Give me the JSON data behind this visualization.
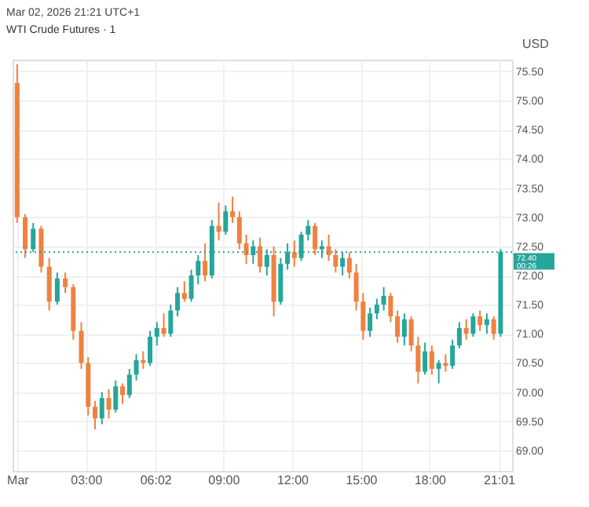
{
  "chart_data": {
    "type": "candlestick",
    "title": "WTI Crude Futures · 1",
    "subtitle": "Mar 02, 2026 21:21 UTC+1",
    "ylabel": "USD",
    "x": [
      0,
      0.35,
      0.7,
      1.05,
      1.4,
      1.75,
      2.1,
      2.45,
      2.8,
      3.1,
      3.4,
      3.7,
      4.0,
      4.3,
      4.6,
      4.9,
      5.2,
      5.5,
      5.8,
      6.1,
      6.4,
      6.7,
      7.0,
      7.3,
      7.6,
      7.9,
      8.2,
      8.5,
      8.8,
      9.1,
      9.4,
      9.7,
      10.0,
      10.3,
      10.6,
      10.9,
      11.2,
      11.5,
      11.8,
      12.1,
      12.4,
      12.7,
      13.0,
      13.3,
      13.6,
      13.9,
      14.2,
      14.5,
      14.8,
      15.1,
      15.4,
      15.7,
      16.0,
      16.3,
      16.6,
      16.9,
      17.2,
      17.5,
      17.8,
      18.1,
      18.4,
      18.7,
      19.0,
      19.3,
      19.6,
      19.9,
      20.2,
      20.5,
      20.8,
      21.1
    ],
    "ohlc": [
      [
        75.3,
        75.62,
        72.9,
        73.0
      ],
      [
        73.0,
        73.05,
        72.3,
        72.45
      ],
      [
        72.45,
        72.9,
        72.4,
        72.8
      ],
      [
        72.8,
        72.85,
        72.05,
        72.15
      ],
      [
        72.15,
        72.3,
        71.4,
        71.55
      ],
      [
        71.55,
        72.05,
        71.5,
        71.95
      ],
      [
        71.95,
        72.05,
        71.7,
        71.8
      ],
      [
        71.8,
        71.85,
        70.9,
        71.05
      ],
      [
        71.05,
        71.2,
        70.4,
        70.5
      ],
      [
        70.5,
        70.6,
        69.6,
        69.75
      ],
      [
        69.75,
        69.85,
        69.36,
        69.55
      ],
      [
        69.55,
        70.0,
        69.45,
        69.9
      ],
      [
        69.9,
        70.05,
        69.55,
        69.7
      ],
      [
        69.7,
        70.2,
        69.65,
        70.1
      ],
      [
        70.1,
        70.15,
        69.8,
        69.95
      ],
      [
        69.95,
        70.4,
        69.9,
        70.3
      ],
      [
        70.3,
        70.65,
        70.2,
        70.55
      ],
      [
        70.55,
        70.7,
        70.4,
        70.5
      ],
      [
        70.5,
        71.05,
        70.45,
        70.95
      ],
      [
        70.95,
        71.2,
        70.8,
        71.1
      ],
      [
        71.1,
        71.35,
        70.95,
        71.0
      ],
      [
        71.0,
        71.5,
        70.95,
        71.4
      ],
      [
        71.4,
        71.8,
        71.3,
        71.7
      ],
      [
        71.7,
        71.9,
        71.55,
        71.6
      ],
      [
        71.6,
        72.1,
        71.55,
        72.0
      ],
      [
        72.0,
        72.35,
        71.85,
        72.25
      ],
      [
        72.25,
        72.55,
        71.9,
        72.0
      ],
      [
        72.0,
        72.95,
        71.95,
        72.85
      ],
      [
        72.85,
        73.25,
        72.6,
        72.75
      ],
      [
        72.75,
        73.2,
        72.7,
        73.1
      ],
      [
        73.1,
        73.35,
        72.9,
        73.0
      ],
      [
        73.0,
        73.1,
        72.45,
        72.55
      ],
      [
        72.55,
        72.7,
        72.2,
        72.35
      ],
      [
        72.35,
        72.6,
        72.2,
        72.5
      ],
      [
        72.5,
        72.65,
        72.05,
        72.15
      ],
      [
        72.15,
        72.45,
        72.0,
        72.35
      ],
      [
        72.35,
        72.5,
        71.3,
        71.55
      ],
      [
        71.55,
        72.3,
        71.5,
        72.2
      ],
      [
        72.2,
        72.55,
        72.1,
        72.4
      ],
      [
        72.4,
        72.6,
        72.15,
        72.3
      ],
      [
        72.3,
        72.75,
        72.25,
        72.7
      ],
      [
        72.7,
        72.95,
        72.6,
        72.85
      ],
      [
        72.85,
        72.9,
        72.35,
        72.45
      ],
      [
        72.45,
        72.6,
        72.3,
        72.5
      ],
      [
        72.5,
        72.7,
        72.25,
        72.35
      ],
      [
        72.35,
        72.45,
        72.05,
        72.15
      ],
      [
        72.15,
        72.4,
        72.0,
        72.3
      ],
      [
        72.3,
        72.4,
        71.95,
        72.05
      ],
      [
        72.05,
        72.2,
        71.4,
        71.55
      ],
      [
        71.55,
        71.7,
        70.9,
        71.05
      ],
      [
        71.05,
        71.45,
        70.95,
        71.35
      ],
      [
        71.35,
        71.6,
        71.25,
        71.5
      ],
      [
        71.5,
        71.8,
        71.4,
        71.65
      ],
      [
        71.65,
        71.7,
        71.2,
        71.3
      ],
      [
        71.3,
        71.4,
        70.85,
        70.95
      ],
      [
        70.95,
        71.35,
        70.8,
        71.25
      ],
      [
        71.25,
        71.3,
        70.7,
        70.8
      ],
      [
        70.8,
        70.95,
        70.15,
        70.35
      ],
      [
        70.35,
        70.85,
        70.3,
        70.7
      ],
      [
        70.7,
        70.8,
        70.3,
        70.4
      ],
      [
        70.4,
        70.55,
        70.15,
        70.5
      ],
      [
        70.5,
        70.65,
        70.35,
        70.45
      ],
      [
        70.45,
        70.9,
        70.4,
        70.8
      ],
      [
        70.8,
        71.2,
        70.75,
        71.1
      ],
      [
        71.1,
        71.25,
        70.9,
        71.0
      ],
      [
        71.0,
        71.35,
        70.95,
        71.3
      ],
      [
        71.3,
        71.4,
        71.05,
        71.15
      ],
      [
        71.15,
        71.35,
        71.0,
        71.25
      ],
      [
        71.25,
        71.3,
        70.9,
        71.0
      ],
      [
        71.0,
        72.45,
        70.95,
        72.4
      ]
    ],
    "colors": [
      "#f0813f",
      "#f0813f",
      "#26a69a",
      "#f0813f",
      "#f0813f",
      "#26a69a",
      "#f0813f",
      "#f0813f",
      "#f0813f",
      "#f0813f",
      "#f0813f",
      "#26a69a",
      "#f0813f",
      "#26a69a",
      "#f0813f",
      "#26a69a",
      "#26a69a",
      "#f0813f",
      "#26a69a",
      "#26a69a",
      "#f0813f",
      "#26a69a",
      "#26a69a",
      "#f0813f",
      "#26a69a",
      "#26a69a",
      "#f0813f",
      "#26a69a",
      "#f0813f",
      "#26a69a",
      "#f0813f",
      "#f0813f",
      "#f0813f",
      "#26a69a",
      "#f0813f",
      "#26a69a",
      "#f0813f",
      "#26a69a",
      "#26a69a",
      "#f0813f",
      "#26a69a",
      "#26a69a",
      "#f0813f",
      "#26a69a",
      "#f0813f",
      "#f0813f",
      "#26a69a",
      "#f0813f",
      "#f0813f",
      "#f0813f",
      "#26a69a",
      "#26a69a",
      "#26a69a",
      "#f0813f",
      "#f0813f",
      "#26a69a",
      "#f0813f",
      "#f0813f",
      "#26a69a",
      "#f0813f",
      "#26a69a",
      "#f0813f",
      "#26a69a",
      "#26a69a",
      "#f0813f",
      "#26a69a",
      "#f0813f",
      "#26a69a",
      "#f0813f",
      "#26a69a"
    ],
    "xlim": [
      -0.2,
      21.6
    ],
    "xticks": [
      {
        "value": 0,
        "label": "Mar"
      },
      {
        "value": 3,
        "label": "03:00"
      },
      {
        "value": 6.03,
        "label": "06:02"
      },
      {
        "value": 9,
        "label": "09:00"
      },
      {
        "value": 12,
        "label": "12:00"
      },
      {
        "value": 15,
        "label": "15:00"
      },
      {
        "value": 18,
        "label": "18:00"
      },
      {
        "value": 21.02,
        "label": "21:01"
      }
    ],
    "ylim": [
      68.65,
      75.7
    ],
    "yticks": [
      {
        "value": 69,
        "label": "69.00"
      },
      {
        "value": 69.5,
        "label": "69.50"
      },
      {
        "value": 70,
        "label": "70.00"
      },
      {
        "value": 70.5,
        "label": "70.50"
      },
      {
        "value": 71,
        "label": "71.00"
      },
      {
        "value": 71.5,
        "label": "71.50"
      },
      {
        "value": 72,
        "label": "72.00"
      },
      {
        "value": 72.5,
        "label": "72.50"
      },
      {
        "value": 73,
        "label": "73.00"
      },
      {
        "value": 73.5,
        "label": "73.50"
      },
      {
        "value": 74,
        "label": "74.00"
      },
      {
        "value": 74.5,
        "label": "74.50"
      },
      {
        "value": 75,
        "label": "75.00"
      },
      {
        "value": 75.5,
        "label": "75.50"
      }
    ],
    "ref_lines": [
      {
        "axis": "y",
        "value": 72.4,
        "label": "72.40",
        "color": "#26a69a",
        "line_style": "dotted"
      }
    ],
    "annotations": [
      "00:26"
    ],
    "grid": true
  }
}
